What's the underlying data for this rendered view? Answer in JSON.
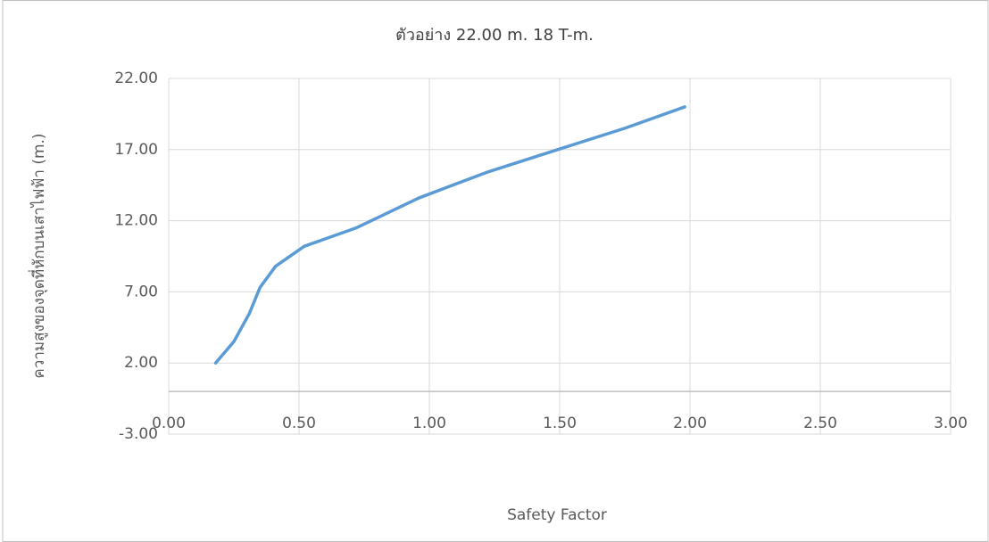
{
  "chart_data": {
    "type": "line",
    "title": "ตัวอย่าง 22.00 m. 18 T-m.",
    "x_label": "Safety Factor",
    "y_label": "ความสูงของจุดที่หักบนเสาไฟฟ้า (m.)",
    "x": [
      0.18,
      0.25,
      0.31,
      0.35,
      0.41,
      0.52,
      0.72,
      0.96,
      1.22,
      1.51,
      1.75,
      1.98
    ],
    "series": [
      {
        "name": "ตัวอย่าง 22.00 m. 18 T-m.",
        "color": "#5b9bd5",
        "values": [
          2.0,
          3.5,
          5.5,
          7.3,
          8.8,
          10.2,
          11.5,
          13.6,
          15.4,
          17.1,
          18.5,
          20.0
        ]
      }
    ],
    "xlim": [
      0,
      3
    ],
    "xticks": [
      {
        "value": 0,
        "label": "0.00"
      },
      {
        "value": 0.5,
        "label": "0.50"
      },
      {
        "value": 1,
        "label": "1.00"
      },
      {
        "value": 1.5,
        "label": "1.50"
      },
      {
        "value": 2,
        "label": "2.00"
      },
      {
        "value": 2.5,
        "label": "2.50"
      },
      {
        "value": 3,
        "label": "3.00"
      }
    ],
    "ylim": [
      -3,
      22
    ],
    "yticks": [
      {
        "value": -3,
        "label": "-3.00"
      },
      {
        "value": 2,
        "label": "2.00"
      },
      {
        "value": 7,
        "label": "7.00"
      },
      {
        "value": 12,
        "label": "12.00"
      },
      {
        "value": 17,
        "label": "17.00"
      },
      {
        "value": 22,
        "label": "22.00"
      }
    ],
    "grid": true
  }
}
